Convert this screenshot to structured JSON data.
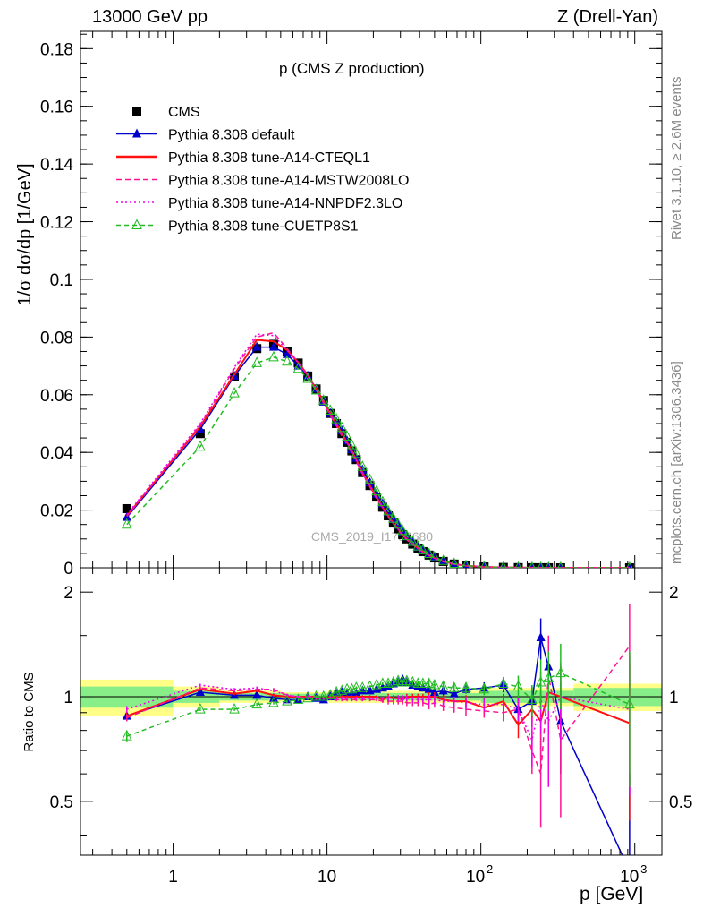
{
  "header": {
    "left": "13000 GeV pp",
    "right": "Z (Drell-Yan)"
  },
  "side_labels": {
    "rivet": "Rivet 3.1.10, ≥ 2.6M events",
    "mcplots": "mcplots.cern.ch [arXiv:1306.3436]"
  },
  "watermark": "CMS_2019_I1753680",
  "colors": {
    "data": "#000000",
    "default": "#0000cc",
    "cteql1": "#ff1111",
    "mstw": "#ff1493",
    "nnpdf": "#ee00ee",
    "cuetp8s1": "#22bb22",
    "band_yellow": "#ffff88",
    "band_green": "#88ee88"
  },
  "chart_data": [
    {
      "type": "line",
      "panel": "main",
      "title": "p_T^ll (CMS Z production)",
      "xlabel": "p_T^Z [GeV]",
      "ylabel": "1/σ dσ/dp_T^Z [1/GeV]",
      "xscale": "log",
      "xlim": [
        0.25,
        1500
      ],
      "ylim": [
        0,
        0.186
      ],
      "yticks": [
        0,
        0.02,
        0.04,
        0.06,
        0.08,
        0.1,
        0.12,
        0.14,
        0.16,
        0.18
      ],
      "ytick_labels": [
        "0",
        "0.02",
        "0.04",
        "0.06",
        "0.08",
        "0.1",
        "0.12",
        "0.14",
        "0.16",
        "0.18"
      ],
      "legend_position": "top-left",
      "x": [
        0.5,
        1.5,
        2.5,
        3.5,
        4.5,
        5.5,
        6.5,
        7.5,
        8.5,
        9.5,
        10.5,
        11.5,
        12.5,
        13.5,
        14.5,
        15.5,
        17,
        19,
        21,
        23,
        25,
        27,
        29,
        31,
        33,
        36,
        39,
        42,
        46,
        50,
        57,
        67,
        80,
        105,
        140,
        175,
        215,
        245,
        275,
        330,
        925
      ],
      "series": [
        {
          "name": "CMS",
          "key": "data",
          "marker": "square",
          "values": [
            0.0205,
            0.0465,
            0.0662,
            0.076,
            0.0775,
            0.075,
            0.071,
            0.0665,
            0.062,
            0.058,
            0.0535,
            0.05,
            0.0465,
            0.0435,
            0.0405,
            0.0375,
            0.033,
            0.0285,
            0.0245,
            0.021,
            0.018,
            0.0155,
            0.0135,
            0.0115,
            0.01,
            0.0082,
            0.0068,
            0.0056,
            0.0044,
            0.0034,
            0.0022,
            0.0013,
            0.0007,
            0.0003,
            0.00012,
            6e-05,
            3e-05,
            2e-05,
            1.5e-05,
            1e-05,
            1e-06
          ]
        },
        {
          "name": "Pythia 8.308 default",
          "key": "default",
          "marker": "triangle",
          "values": [
            0.0175,
            0.048,
            0.0665,
            0.0765,
            0.0765,
            0.074,
            0.07,
            0.0665,
            0.062,
            0.0575,
            0.0535,
            0.0505,
            0.0475,
            0.044,
            0.041,
            0.038,
            0.034,
            0.0295,
            0.0255,
            0.0222,
            0.0192,
            0.0168,
            0.0147,
            0.0125,
            0.0108,
            0.0088,
            0.0072,
            0.0059,
            0.0046,
            0.0035,
            0.0023,
            0.0013,
            0.0007,
            0.0003,
            0.00012,
            6e-05,
            3e-05,
            2e-05,
            1.5e-05,
            1e-05,
            1e-06
          ]
        },
        {
          "name": "Pythia 8.308 tune-A14-CTEQL1",
          "key": "cteql1",
          "marker": "none",
          "values": [
            0.018,
            0.049,
            0.067,
            0.079,
            0.0785,
            0.0755,
            0.0712,
            0.0668,
            0.062,
            0.0578,
            0.0535,
            0.05,
            0.0465,
            0.0435,
            0.0405,
            0.0375,
            0.033,
            0.0285,
            0.0245,
            0.021,
            0.018,
            0.0155,
            0.0135,
            0.0115,
            0.01,
            0.0082,
            0.0068,
            0.0056,
            0.0044,
            0.0034,
            0.0022,
            0.0013,
            0.0007,
            0.0003,
            0.00012,
            6e-05,
            3e-05,
            2e-05,
            1.5e-05,
            1e-05,
            1e-06
          ]
        },
        {
          "name": "Pythia 8.308 tune-A14-MSTW2008LO",
          "key": "mstw",
          "marker": "none",
          "values": [
            0.0178,
            0.0495,
            0.069,
            0.08,
            0.0815,
            0.076,
            0.0712,
            0.0665,
            0.0615,
            0.057,
            0.0528,
            0.0492,
            0.0457,
            0.0428,
            0.0398,
            0.0368,
            0.0325,
            0.028,
            0.024,
            0.0206,
            0.0175,
            0.0151,
            0.0131,
            0.0112,
            0.0097,
            0.008,
            0.0066,
            0.0054,
            0.0042,
            0.0033,
            0.0021,
            0.0012,
            0.0007,
            0.0003,
            0.00012,
            6e-05,
            3e-05,
            2e-05,
            1.5e-05,
            1e-05,
            1e-06
          ]
        },
        {
          "name": "Pythia 8.308 tune-A14-NNPDF2.3LO",
          "key": "nnpdf",
          "marker": "none",
          "values": [
            0.0185,
            0.05,
            0.0695,
            0.081,
            0.0805,
            0.0755,
            0.071,
            0.0665,
            0.0618,
            0.0573,
            0.0532,
            0.0497,
            0.0462,
            0.0432,
            0.0402,
            0.0372,
            0.0328,
            0.0282,
            0.0243,
            0.0208,
            0.0178,
            0.0153,
            0.0133,
            0.0114,
            0.0099,
            0.0081,
            0.0067,
            0.0055,
            0.0043,
            0.0033,
            0.0022,
            0.0013,
            0.0007,
            0.0003,
            0.00012,
            6e-05,
            3e-05,
            2e-05,
            1.5e-05,
            1e-05,
            1e-06
          ]
        },
        {
          "name": "Pythia 8.308 tune-CUETP8S1",
          "key": "cuetp8s1",
          "marker": "open-triangle",
          "values": [
            0.015,
            0.042,
            0.0605,
            0.071,
            0.073,
            0.0715,
            0.069,
            0.0655,
            0.0615,
            0.058,
            0.0545,
            0.0515,
            0.0485,
            0.0455,
            0.0425,
            0.0395,
            0.035,
            0.0305,
            0.0265,
            0.0228,
            0.0196,
            0.017,
            0.015,
            0.0128,
            0.011,
            0.009,
            0.0074,
            0.0061,
            0.0048,
            0.0037,
            0.0024,
            0.0014,
            0.0007,
            0.0003,
            0.00013,
            6e-05,
            3e-05,
            2e-05,
            1.6e-05,
            1e-05,
            1e-06
          ]
        }
      ]
    },
    {
      "type": "line",
      "panel": "ratio",
      "ylabel": "Ratio to CMS",
      "xscale": "log",
      "xlim": [
        0.25,
        1500
      ],
      "ylim": [
        0.35,
        2.35
      ],
      "yscale": "log",
      "yticks": [
        0.5,
        1,
        2
      ],
      "ytick_labels": [
        "0.5",
        "1",
        "2"
      ],
      "xticks": [
        1,
        10,
        100,
        1000
      ],
      "xtick_labels": [
        "1",
        "10",
        "10^2",
        "10^3"
      ],
      "bands": [
        {
          "x_edges": [
            0.25,
            1,
            2,
            5,
            10,
            100,
            400,
            1500
          ],
          "yellow": [
            0.12,
            0.07,
            0.04,
            0.03,
            0.04,
            0.06,
            0.09
          ],
          "green": [
            0.07,
            0.04,
            0.025,
            0.02,
            0.025,
            0.04,
            0.06
          ]
        }
      ],
      "x": [
        0.5,
        1.5,
        2.5,
        3.5,
        4.5,
        5.5,
        6.5,
        7.5,
        8.5,
        9.5,
        10.5,
        11.5,
        12.5,
        13.5,
        14.5,
        15.5,
        17,
        19,
        21,
        23,
        25,
        27,
        29,
        31,
        33,
        36,
        39,
        42,
        46,
        50,
        57,
        67,
        80,
        105,
        140,
        175,
        215,
        245,
        275,
        330,
        925
      ],
      "series": [
        {
          "name": "Pythia 8.308 default",
          "key": "default",
          "values": [
            0.88,
            1.03,
            1.01,
            1.01,
            0.99,
            0.98,
            0.98,
            1.0,
            0.99,
            0.98,
            1.0,
            1.02,
            1.03,
            1.02,
            1.02,
            1.02,
            1.04,
            1.04,
            1.05,
            1.06,
            1.07,
            1.09,
            1.1,
            1.12,
            1.1,
            1.08,
            1.07,
            1.06,
            1.05,
            1.03,
            1.04,
            1.02,
            1.05,
            1.06,
            1.08,
            0.92,
            0.97,
            1.48,
            1.22,
            0.85,
            0.2
          ],
          "errors": [
            0.02,
            0.01,
            0.01,
            0.01,
            0.01,
            0.01,
            0.01,
            0.01,
            0.01,
            0.01,
            0.01,
            0.01,
            0.01,
            0.01,
            0.01,
            0.01,
            0.01,
            0.01,
            0.01,
            0.01,
            0.01,
            0.01,
            0.02,
            0.02,
            0.02,
            0.02,
            0.02,
            0.02,
            0.02,
            0.03,
            0.03,
            0.03,
            0.03,
            0.04,
            0.05,
            0.08,
            0.1,
            0.2,
            0.25,
            0.25,
            0.4
          ]
        },
        {
          "name": "Pythia 8.308 tune-A14-CTEQL1",
          "key": "cteql1",
          "values": [
            0.88,
            1.05,
            1.02,
            1.04,
            1.01,
            1.0,
            1.0,
            1.0,
            1.0,
            0.99,
            1.0,
            1.0,
            1.0,
            1.0,
            1.0,
            1.0,
            1.0,
            1.0,
            1.0,
            0.98,
            1.0,
            0.99,
            0.99,
            0.98,
            1.0,
            1.0,
            1.0,
            1.0,
            1.0,
            1.0,
            0.98,
            0.97,
            0.97,
            0.93,
            0.97,
            0.83,
            0.92,
            0.85,
            1.03,
            1.0,
            0.84
          ],
          "errors": [
            0.02,
            0.01,
            0.01,
            0.01,
            0.01,
            0.01,
            0.01,
            0.01,
            0.01,
            0.01,
            0.01,
            0.01,
            0.01,
            0.01,
            0.01,
            0.01,
            0.01,
            0.01,
            0.01,
            0.01,
            0.02,
            0.02,
            0.02,
            0.02,
            0.02,
            0.02,
            0.02,
            0.02,
            0.03,
            0.03,
            0.03,
            0.03,
            0.04,
            0.04,
            0.05,
            0.07,
            0.1,
            0.18,
            0.2,
            0.22,
            0.4
          ]
        },
        {
          "name": "Pythia 8.308 tune-A14-MSTW2008LO",
          "key": "mstw",
          "values": [
            0.87,
            1.06,
            1.04,
            1.05,
            1.05,
            1.01,
            1.0,
            0.99,
            0.99,
            0.99,
            0.99,
            0.98,
            0.98,
            0.98,
            0.98,
            0.98,
            0.98,
            0.98,
            0.98,
            0.97,
            0.97,
            0.97,
            0.97,
            0.97,
            0.96,
            0.96,
            0.96,
            0.96,
            0.95,
            0.96,
            0.94,
            0.93,
            0.92,
            0.91,
            0.9,
            0.92,
            0.7,
            0.6,
            1.15,
            0.75,
            1.4
          ],
          "errors": [
            0.02,
            0.01,
            0.01,
            0.01,
            0.01,
            0.01,
            0.01,
            0.01,
            0.01,
            0.01,
            0.01,
            0.01,
            0.01,
            0.01,
            0.01,
            0.01,
            0.01,
            0.01,
            0.01,
            0.01,
            0.02,
            0.02,
            0.02,
            0.02,
            0.02,
            0.02,
            0.02,
            0.02,
            0.03,
            0.03,
            0.03,
            0.03,
            0.04,
            0.04,
            0.05,
            0.07,
            0.1,
            0.18,
            0.35,
            0.3,
            0.45
          ]
        },
        {
          "name": "Pythia 8.308 tune-A14-NNPDF2.3LO",
          "key": "nnpdf",
          "values": [
            0.92,
            1.08,
            1.05,
            1.06,
            1.04,
            1.01,
            1.0,
            1.0,
            1.0,
            0.99,
            0.99,
            0.99,
            0.99,
            0.99,
            0.99,
            0.99,
            0.99,
            0.99,
            0.99,
            0.99,
            0.99,
            0.99,
            0.99,
            0.99,
            0.99,
            0.98,
            0.98,
            0.98,
            0.98,
            0.98,
            0.97,
            0.97,
            0.96,
            0.95,
            0.95,
            0.92,
            0.75,
            0.98,
            0.85,
            1.0,
            0.92
          ],
          "errors": [
            0.02,
            0.01,
            0.01,
            0.01,
            0.01,
            0.01,
            0.01,
            0.01,
            0.01,
            0.01,
            0.01,
            0.01,
            0.01,
            0.01,
            0.01,
            0.01,
            0.01,
            0.01,
            0.01,
            0.01,
            0.02,
            0.02,
            0.02,
            0.02,
            0.02,
            0.02,
            0.02,
            0.02,
            0.03,
            0.03,
            0.03,
            0.03,
            0.04,
            0.04,
            0.05,
            0.07,
            0.12,
            0.2,
            0.3,
            0.25,
            0.4
          ]
        },
        {
          "name": "Pythia 8.308 tune-CUETP8S1",
          "key": "cuetp8s1",
          "values": [
            0.77,
            0.92,
            0.92,
            0.95,
            0.96,
            0.97,
            0.98,
            0.99,
            1.0,
            1.0,
            1.01,
            1.03,
            1.04,
            1.05,
            1.05,
            1.06,
            1.06,
            1.07,
            1.08,
            1.09,
            1.09,
            1.1,
            1.11,
            1.1,
            1.11,
            1.1,
            1.09,
            1.09,
            1.09,
            1.08,
            1.07,
            1.06,
            1.06,
            1.05,
            1.09,
            1.07,
            0.98,
            1.1,
            1.13,
            1.17,
            0.95
          ],
          "errors": [
            0.03,
            0.01,
            0.01,
            0.01,
            0.01,
            0.01,
            0.01,
            0.01,
            0.01,
            0.01,
            0.01,
            0.01,
            0.01,
            0.01,
            0.01,
            0.01,
            0.01,
            0.01,
            0.01,
            0.01,
            0.02,
            0.02,
            0.02,
            0.02,
            0.02,
            0.02,
            0.02,
            0.02,
            0.03,
            0.03,
            0.03,
            0.03,
            0.04,
            0.04,
            0.05,
            0.08,
            0.1,
            0.18,
            0.22,
            0.25,
            0.4
          ]
        }
      ]
    }
  ],
  "legend": [
    {
      "label": "CMS",
      "key": "data",
      "marker": "square",
      "dash": "none"
    },
    {
      "label": "Pythia 8.308 default",
      "key": "default",
      "marker": "triangle",
      "dash": "solid"
    },
    {
      "label": "Pythia 8.308 tune-A14-CTEQL1",
      "key": "cteql1",
      "marker": "none",
      "dash": "solid"
    },
    {
      "label": "Pythia 8.308 tune-A14-MSTW2008LO",
      "key": "mstw",
      "marker": "none",
      "dash": "dashed"
    },
    {
      "label": "Pythia 8.308 tune-A14-NNPDF2.3LO",
      "key": "nnpdf",
      "marker": "none",
      "dash": "dotted"
    },
    {
      "label": "Pythia 8.308 tune-CUETP8S1",
      "key": "cuetp8s1",
      "marker": "open-triangle",
      "dash": "dashed"
    }
  ]
}
